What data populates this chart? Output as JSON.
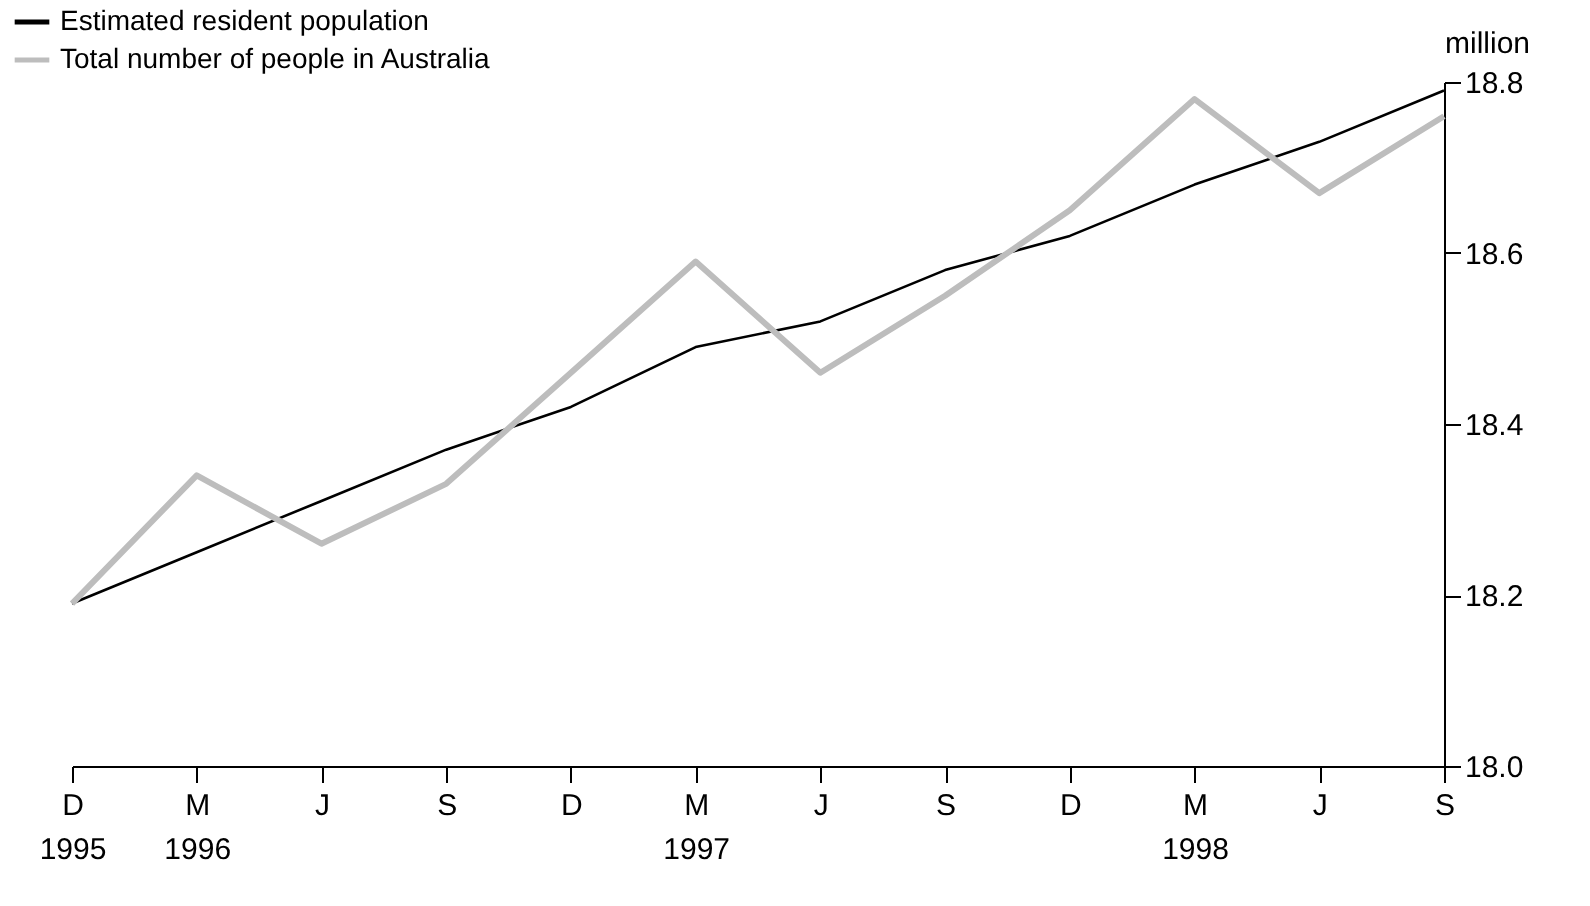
{
  "chart_data": {
    "type": "line",
    "ylabel": "million",
    "categories": [
      "D 1995",
      "M 1996",
      "J",
      "S",
      "D",
      "M 1997",
      "J",
      "S",
      "D",
      "M 1998",
      "J",
      "S"
    ],
    "series": [
      {
        "name": "Estimated resident population",
        "color": "#000000",
        "values": [
          18.19,
          18.25,
          18.31,
          18.37,
          18.42,
          18.49,
          18.52,
          18.58,
          18.62,
          18.68,
          18.73,
          18.79
        ]
      },
      {
        "name": "Total number of people in Australia",
        "color": "#bdbdbd",
        "values": [
          18.19,
          18.34,
          18.26,
          18.33,
          18.46,
          18.59,
          18.46,
          18.55,
          18.65,
          18.78,
          18.67,
          18.76
        ]
      }
    ],
    "ylim": [
      18.0,
      18.8
    ],
    "yticks": [
      {
        "value": 18.0,
        "label": "18.0"
      },
      {
        "value": 18.2,
        "label": "18.2"
      },
      {
        "value": 18.4,
        "label": "18.4"
      },
      {
        "value": 18.6,
        "label": "18.6"
      },
      {
        "value": 18.8,
        "label": "18.8"
      }
    ],
    "grid": false,
    "legend": "top left",
    "marker": "none",
    "line_style": "solid"
  }
}
